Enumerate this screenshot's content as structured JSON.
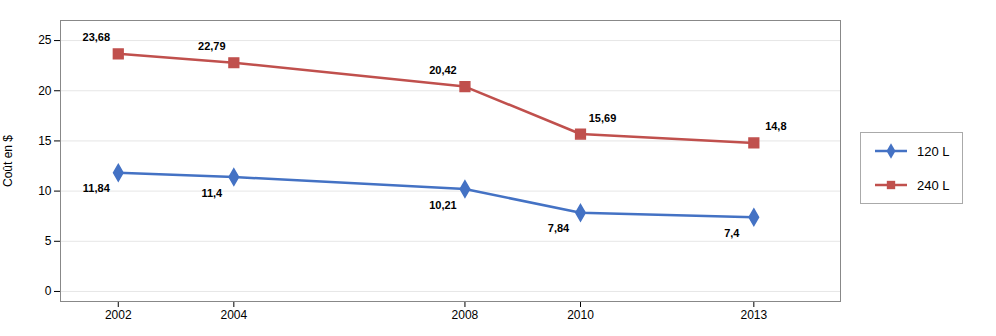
{
  "chart_data": {
    "type": "line",
    "x": [
      2002,
      2004,
      2008,
      2010,
      2013
    ],
    "xlim": [
      2001.0,
      2014.5
    ],
    "xticks": [
      2002,
      2004,
      2008,
      2010,
      2013
    ],
    "ylim": [
      -1,
      27
    ],
    "yticks": [
      0,
      5,
      10,
      15,
      20,
      25
    ],
    "ylabel": "Coût en $",
    "grid": true,
    "legend": "right",
    "data_labels": true,
    "series": [
      {
        "name": "120 L",
        "color": "#4472C4",
        "marker": "diamond",
        "values": [
          11.84,
          11.4,
          10.21,
          7.84,
          7.4
        ],
        "value_labels": [
          "11,84",
          "11,4",
          "10,21",
          "7,84",
          "7,4"
        ]
      },
      {
        "name": "240 L",
        "color": "#C0504D",
        "marker": "square",
        "values": [
          23.68,
          22.79,
          20.42,
          15.69,
          14.8
        ],
        "value_labels": [
          "23,68",
          "22,79",
          "20,42",
          "15,69",
          "14,8"
        ]
      }
    ]
  }
}
